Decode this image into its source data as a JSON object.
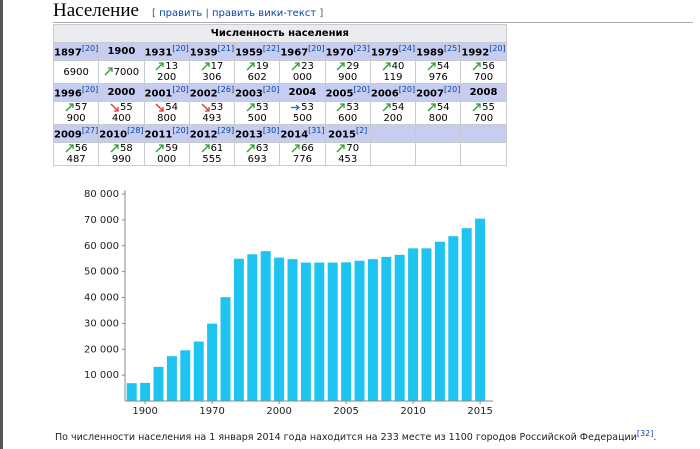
{
  "header": {
    "title": "Население",
    "edit_open": "[",
    "edit_links": [
      "править",
      "править вики-текст"
    ],
    "edit_sep": "|",
    "edit_close": "]"
  },
  "table": {
    "caption": "Численность населения",
    "blocks": [
      {
        "years": [
          {
            "year": "1897",
            "ref": "[20]"
          },
          {
            "year": "1900"
          },
          {
            "year": "1931",
            "ref": "[20]"
          },
          {
            "year": "1939",
            "ref": "[21]"
          },
          {
            "year": "1959",
            "ref": "[22]"
          },
          {
            "year": "1967",
            "ref": "[20]"
          },
          {
            "year": "1970",
            "ref": "[23]"
          },
          {
            "year": "1979",
            "ref": "[24]"
          },
          {
            "year": "1989",
            "ref": "[25]"
          },
          {
            "year": "1992",
            "ref": "[20]"
          }
        ],
        "values": [
          "6900",
          "7000",
          "13 200",
          "17 306",
          "19 602",
          "23 000",
          "29 900",
          "40 119",
          "54 976",
          "56 700"
        ]
      },
      {
        "years": [
          {
            "year": "1996",
            "ref": "[20]"
          },
          {
            "year": "2000"
          },
          {
            "year": "2001",
            "ref": "[20]"
          },
          {
            "year": "2002",
            "ref": "[26]"
          },
          {
            "year": "2003",
            "ref": "[20]"
          },
          {
            "year": "2004"
          },
          {
            "year": "2005",
            "ref": "[20]"
          },
          {
            "year": "2006",
            "ref": "[20]"
          },
          {
            "year": "2007",
            "ref": "[20]"
          },
          {
            "year": "2008"
          }
        ],
        "values": [
          "57 900",
          "55 400",
          "54 800",
          "53 493",
          "53 500",
          "53 500",
          "53 600",
          "54 200",
          "54 800",
          "55 700"
        ]
      },
      {
        "years": [
          {
            "year": "2009",
            "ref": "[27]"
          },
          {
            "year": "2010",
            "ref": "[28]"
          },
          {
            "year": "2011",
            "ref": "[20]"
          },
          {
            "year": "2012",
            "ref": "[29]"
          },
          {
            "year": "2013",
            "ref": "[30]"
          },
          {
            "year": "2014",
            "ref": "[31]"
          },
          {
            "year": "2015",
            "ref": "[2]"
          }
        ],
        "values": [
          "56 487",
          "58 990",
          "59 000",
          "61 555",
          "63 693",
          "66 776",
          "70 453"
        ]
      }
    ]
  },
  "chart_data": {
    "type": "bar",
    "color": "#1ec4f0",
    "categories": [
      null,
      "1900",
      null,
      null,
      null,
      null,
      "1970",
      null,
      null,
      null,
      null,
      "2000",
      null,
      null,
      null,
      null,
      "2005",
      null,
      null,
      null,
      null,
      "2010",
      null,
      null,
      null,
      null,
      "2015"
    ],
    "values": [
      6900,
      7000,
      13200,
      17306,
      19602,
      23000,
      29900,
      40119,
      54976,
      56700,
      57900,
      55400,
      54800,
      53493,
      53500,
      53500,
      53600,
      54200,
      54800,
      55700,
      56487,
      58990,
      59000,
      61555,
      63693,
      66776,
      70453
    ],
    "ylim": [
      0,
      80000
    ],
    "yticks": [
      {
        "value": 10000,
        "label": "10 000"
      },
      {
        "value": 20000,
        "label": "20 000"
      },
      {
        "value": 30000,
        "label": "30 000"
      },
      {
        "value": 40000,
        "label": "40 000"
      },
      {
        "value": 50000,
        "label": "50 000"
      },
      {
        "value": 60000,
        "label": "60 000"
      },
      {
        "value": 70000,
        "label": "70 000"
      },
      {
        "value": 80000,
        "label": "80 000"
      }
    ]
  },
  "paragraph": {
    "text": "По численности населения на 1 января 2014 года находится на 233 месте из 1100 городов Российской Федерации",
    "ref": "[32]",
    "end": "."
  }
}
